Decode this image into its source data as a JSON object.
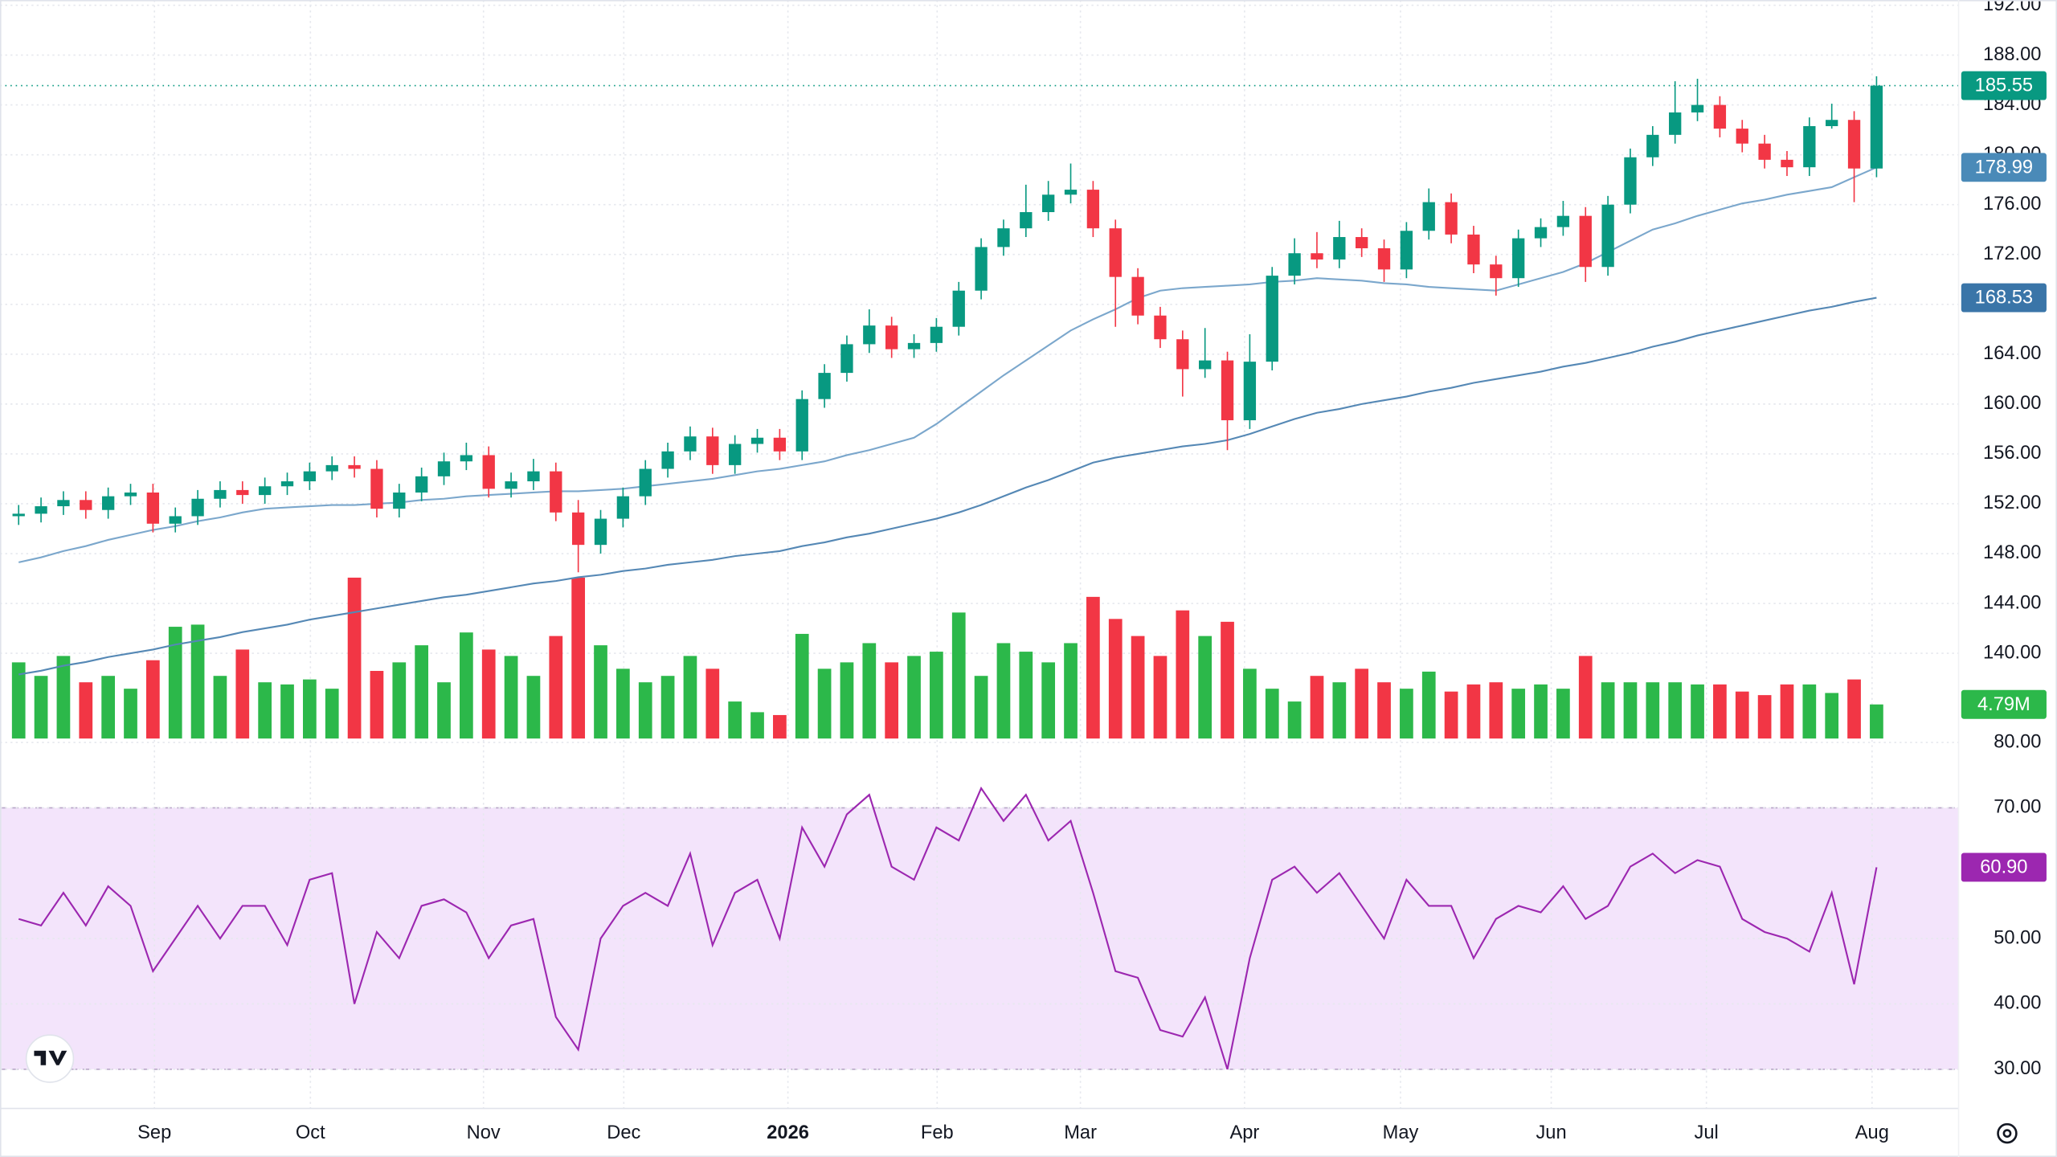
{
  "chart_data": {
    "type": "candlestick",
    "x": [
      2,
      5,
      8,
      11,
      14,
      17,
      20,
      23,
      26,
      29,
      32,
      35,
      38,
      41,
      44,
      47,
      50,
      53,
      56,
      59,
      62,
      65,
      68,
      71,
      74,
      77,
      80,
      83,
      86,
      89,
      92,
      95,
      98,
      101,
      104,
      107,
      110,
      113,
      116,
      119,
      122,
      125,
      128,
      131,
      134,
      137,
      140,
      143,
      146,
      149,
      152,
      155,
      158,
      161,
      164,
      167,
      170,
      173,
      176,
      179,
      182,
      185,
      188,
      191,
      194,
      197,
      200,
      203,
      206,
      209,
      212,
      215,
      218,
      221,
      224,
      227,
      230,
      233,
      236,
      239,
      242,
      245,
      248,
      251
    ],
    "xlim": [
      -0.5,
      262
    ],
    "xticks": [
      {
        "value": 20.2,
        "label": "Sep"
      },
      {
        "value": 41.1,
        "label": "Oct"
      },
      {
        "value": 64.3,
        "label": "Nov"
      },
      {
        "value": 83.1,
        "label": "Dec"
      },
      {
        "value": 105.1,
        "label": "2026"
      },
      {
        "value": 125.1,
        "label": "Feb"
      },
      {
        "value": 144.3,
        "label": "Mar"
      },
      {
        "value": 166.3,
        "label": "Apr"
      },
      {
        "value": 187.2,
        "label": "May"
      },
      {
        "value": 207.4,
        "label": "Jun"
      },
      {
        "value": 228.2,
        "label": "Jul"
      },
      {
        "value": 250.4,
        "label": "Aug"
      }
    ],
    "open": [
      151.0,
      151.2,
      151.8,
      152.3,
      151.5,
      152.6,
      152.9,
      150.4,
      151.0,
      152.4,
      153.1,
      152.7,
      153.4,
      153.8,
      154.6,
      155.1,
      154.8,
      151.6,
      152.9,
      154.2,
      155.4,
      155.9,
      153.2,
      153.8,
      154.6,
      151.3,
      148.7,
      150.8,
      152.6,
      154.8,
      156.2,
      157.4,
      155.1,
      156.8,
      157.3,
      156.2,
      160.4,
      162.5,
      164.8,
      166.3,
      164.4,
      164.9,
      166.2,
      169.1,
      172.6,
      174.1,
      175.4,
      176.8,
      177.2,
      174.1,
      170.2,
      167.1,
      165.2,
      162.8,
      163.5,
      158.7,
      163.4,
      170.3,
      172.1,
      171.6,
      173.4,
      172.5,
      170.8,
      173.9,
      176.2,
      173.6,
      171.2,
      170.1,
      173.3,
      174.2,
      175.1,
      171.0,
      176.0,
      179.8,
      181.6,
      183.4,
      184.0,
      182.1,
      180.9,
      179.6,
      179.0,
      182.3,
      182.8,
      178.9
    ],
    "high": [
      151.9,
      152.5,
      153.0,
      153.0,
      153.3,
      153.6,
      153.6,
      151.7,
      153.1,
      153.8,
      153.8,
      154.1,
      154.5,
      155.3,
      155.8,
      155.8,
      155.5,
      153.6,
      154.9,
      156.1,
      156.9,
      156.6,
      154.5,
      155.6,
      155.3,
      152.3,
      151.5,
      153.3,
      155.5,
      156.9,
      158.2,
      158.1,
      157.5,
      158.0,
      158.0,
      161.1,
      163.2,
      165.5,
      167.6,
      167.0,
      165.6,
      166.9,
      169.8,
      173.3,
      174.8,
      177.6,
      177.9,
      179.3,
      177.9,
      174.8,
      170.9,
      167.8,
      165.9,
      166.1,
      164.2,
      165.6,
      171.0,
      173.3,
      173.8,
      174.7,
      174.1,
      173.2,
      174.6,
      177.3,
      176.9,
      174.3,
      171.9,
      174.0,
      174.9,
      176.3,
      175.8,
      176.7,
      180.5,
      182.3,
      185.9,
      186.1,
      184.7,
      182.8,
      181.6,
      180.3,
      183.0,
      184.1,
      183.5,
      186.3
    ],
    "low": [
      150.3,
      150.5,
      151.1,
      150.8,
      150.8,
      151.9,
      149.7,
      149.7,
      150.3,
      151.7,
      152.0,
      152.0,
      152.7,
      153.1,
      153.9,
      154.1,
      150.9,
      150.9,
      152.2,
      153.5,
      154.7,
      152.5,
      152.5,
      153.1,
      150.6,
      146.5,
      148.0,
      150.1,
      151.9,
      154.1,
      155.5,
      154.4,
      154.4,
      156.1,
      155.5,
      155.5,
      159.7,
      161.8,
      164.1,
      163.7,
      163.7,
      164.2,
      165.5,
      168.4,
      171.9,
      173.4,
      174.7,
      176.1,
      173.4,
      166.2,
      166.4,
      164.5,
      160.6,
      162.1,
      156.3,
      158.0,
      162.7,
      169.6,
      170.9,
      170.9,
      171.8,
      169.8,
      170.1,
      173.2,
      172.9,
      170.5,
      168.7,
      169.4,
      172.6,
      173.5,
      169.8,
      170.3,
      175.3,
      179.1,
      180.9,
      182.7,
      181.4,
      180.2,
      178.9,
      178.3,
      178.3,
      182.1,
      176.2,
      178.2
    ],
    "close": [
      151.2,
      151.8,
      152.3,
      151.5,
      152.6,
      152.9,
      150.4,
      151.0,
      152.4,
      153.1,
      152.7,
      153.4,
      153.8,
      154.6,
      155.1,
      154.8,
      151.6,
      152.9,
      154.2,
      155.4,
      155.9,
      153.2,
      153.8,
      154.6,
      151.3,
      148.7,
      150.8,
      152.6,
      154.8,
      156.2,
      157.4,
      155.1,
      156.8,
      157.3,
      156.2,
      160.4,
      162.5,
      164.8,
      166.3,
      164.4,
      164.9,
      166.2,
      169.1,
      172.6,
      174.1,
      175.4,
      176.8,
      177.2,
      174.1,
      170.2,
      167.1,
      165.2,
      162.8,
      163.5,
      158.7,
      163.4,
      170.3,
      172.1,
      171.6,
      173.4,
      172.5,
      170.8,
      173.9,
      176.2,
      173.6,
      171.2,
      170.1,
      173.3,
      174.2,
      175.1,
      171.0,
      176.0,
      179.8,
      181.6,
      183.4,
      184.0,
      182.1,
      180.9,
      179.6,
      179.0,
      182.3,
      182.8,
      178.9,
      185.55
    ],
    "up_color": "#089981",
    "down_color": "#f23645",
    "ylim": [
      133.16,
      192
    ],
    "yticks": [
      {
        "value": 192,
        "label": "192.00"
      },
      {
        "value": 188,
        "label": "188.00"
      },
      {
        "value": 184,
        "label": "184.00"
      },
      {
        "value": 180,
        "label": "180.00"
      },
      {
        "value": 176,
        "label": "176.00"
      },
      {
        "value": 172,
        "label": "172.00"
      },
      {
        "value": 168,
        "label": "168.00"
      },
      {
        "value": 164,
        "label": "164.00"
      },
      {
        "value": 160,
        "label": "160.00"
      },
      {
        "value": 156,
        "label": "156.00"
      },
      {
        "value": 152,
        "label": "152.00"
      },
      {
        "value": 148,
        "label": "148.00"
      },
      {
        "value": 144,
        "label": "144.00"
      },
      {
        "value": 140,
        "label": "140.00"
      }
    ],
    "grid": true,
    "moving_averages": [
      {
        "color": "#7ba7cc",
        "label_color": "#4a8ab8",
        "values": [
          147.3,
          147.7,
          148.2,
          148.6,
          149.1,
          149.5,
          149.9,
          150.2,
          150.6,
          150.9,
          151.3,
          151.6,
          151.7,
          151.8,
          151.9,
          151.9,
          152.0,
          152.1,
          152.3,
          152.4,
          152.6,
          152.7,
          152.8,
          152.9,
          153.0,
          153.0,
          153.1,
          153.2,
          153.4,
          153.6,
          153.8,
          154.0,
          154.3,
          154.6,
          154.8,
          155.1,
          155.4,
          155.9,
          156.3,
          156.8,
          157.3,
          158.4,
          159.7,
          161.0,
          162.3,
          163.5,
          164.7,
          165.9,
          166.8,
          167.6,
          168.5,
          169.1,
          169.3,
          169.4,
          169.5,
          169.6,
          169.8,
          169.9,
          170.1,
          170.0,
          169.9,
          169.7,
          169.6,
          169.4,
          169.3,
          169.2,
          169.1,
          169.6,
          170.1,
          170.6,
          171.3,
          172.2,
          173.1,
          174.0,
          174.5,
          175.1,
          175.6,
          176.1,
          176.4,
          176.8,
          177.1,
          177.4,
          178.2,
          178.99
        ]
      },
      {
        "color": "#5588b5",
        "label_color": "#3a75a8",
        "values": [
          138.3,
          138.6,
          139.0,
          139.3,
          139.7,
          140.0,
          140.3,
          140.7,
          141.0,
          141.3,
          141.7,
          142.0,
          142.3,
          142.7,
          143.0,
          143.3,
          143.6,
          143.9,
          144.2,
          144.5,
          144.7,
          145.0,
          145.3,
          145.6,
          145.8,
          146.1,
          146.3,
          146.6,
          146.8,
          147.1,
          147.3,
          147.5,
          147.8,
          148.0,
          148.2,
          148.6,
          148.9,
          149.3,
          149.6,
          150.0,
          150.4,
          150.8,
          151.3,
          151.9,
          152.6,
          153.3,
          153.9,
          154.6,
          155.3,
          155.7,
          156.0,
          156.3,
          156.6,
          156.8,
          157.1,
          157.6,
          158.2,
          158.8,
          159.3,
          159.6,
          160.0,
          160.3,
          160.6,
          161.0,
          161.3,
          161.7,
          162.0,
          162.3,
          162.6,
          163.0,
          163.3,
          163.7,
          164.1,
          164.6,
          165.0,
          165.5,
          165.9,
          166.3,
          166.7,
          167.1,
          167.5,
          167.8,
          168.2,
          168.53
        ]
      }
    ],
    "volume": {
      "values": [
        10.7,
        8.8,
        11.6,
        7.9,
        8.8,
        7.0,
        11.0,
        15.7,
        16.0,
        8.8,
        12.5,
        7.9,
        7.6,
        8.3,
        7.0,
        22.6,
        9.5,
        10.7,
        13.1,
        7.9,
        14.9,
        12.5,
        11.6,
        8.8,
        14.4,
        22.6,
        13.1,
        9.8,
        7.9,
        8.8,
        11.6,
        9.8,
        5.2,
        3.7,
        3.3,
        14.7,
        9.8,
        10.7,
        13.4,
        10.7,
        11.6,
        12.2,
        17.7,
        8.8,
        13.4,
        12.2,
        10.7,
        13.4,
        19.9,
        16.8,
        14.4,
        11.6,
        18.0,
        14.4,
        16.4,
        9.8,
        7.0,
        5.2,
        8.8,
        7.9,
        9.8,
        7.9,
        7.0,
        9.4,
        6.6,
        7.6,
        7.9,
        7.0,
        7.6,
        7.0,
        11.6,
        7.9,
        7.9,
        7.9,
        7.9,
        7.6,
        7.6,
        6.6,
        6.1,
        7.6,
        7.6,
        6.4,
        8.3,
        4.79
      ],
      "last_value_label": "4.79M",
      "ylim": [
        0,
        103
      ],
      "up_color": "#2cb84a",
      "down_color": "#f23645"
    },
    "rsi": {
      "values": [
        53,
        52,
        57,
        52,
        58,
        55,
        45,
        50,
        55,
        50,
        55,
        55,
        49,
        59,
        60,
        40,
        51,
        47,
        55,
        56,
        54,
        47,
        52,
        53,
        38,
        33,
        50,
        55,
        57,
        55,
        63,
        49,
        57,
        59,
        50,
        67,
        61,
        69,
        72,
        61,
        59,
        67,
        65,
        73,
        68,
        72,
        65,
        68,
        57,
        45,
        44,
        36,
        35,
        41,
        30,
        47,
        59,
        61,
        57,
        60,
        55,
        50,
        59,
        55,
        55,
        47,
        53,
        55,
        54,
        58,
        53,
        55,
        61,
        63,
        60,
        62,
        61,
        53,
        51,
        50,
        48,
        57,
        43,
        60.9
      ],
      "last_value_label": "60.90",
      "color": "#9c27b0",
      "band": [
        30,
        70
      ],
      "band_color": "#f3e4fb",
      "ylim": [
        24,
        80
      ],
      "yticks": [
        {
          "value": 80,
          "label": "80.00"
        },
        {
          "value": 70,
          "label": "70.00"
        },
        {
          "value": 50,
          "label": "50.00"
        },
        {
          "value": 40,
          "label": "40.00"
        },
        {
          "value": 30,
          "label": "30.00"
        }
      ]
    }
  }
}
